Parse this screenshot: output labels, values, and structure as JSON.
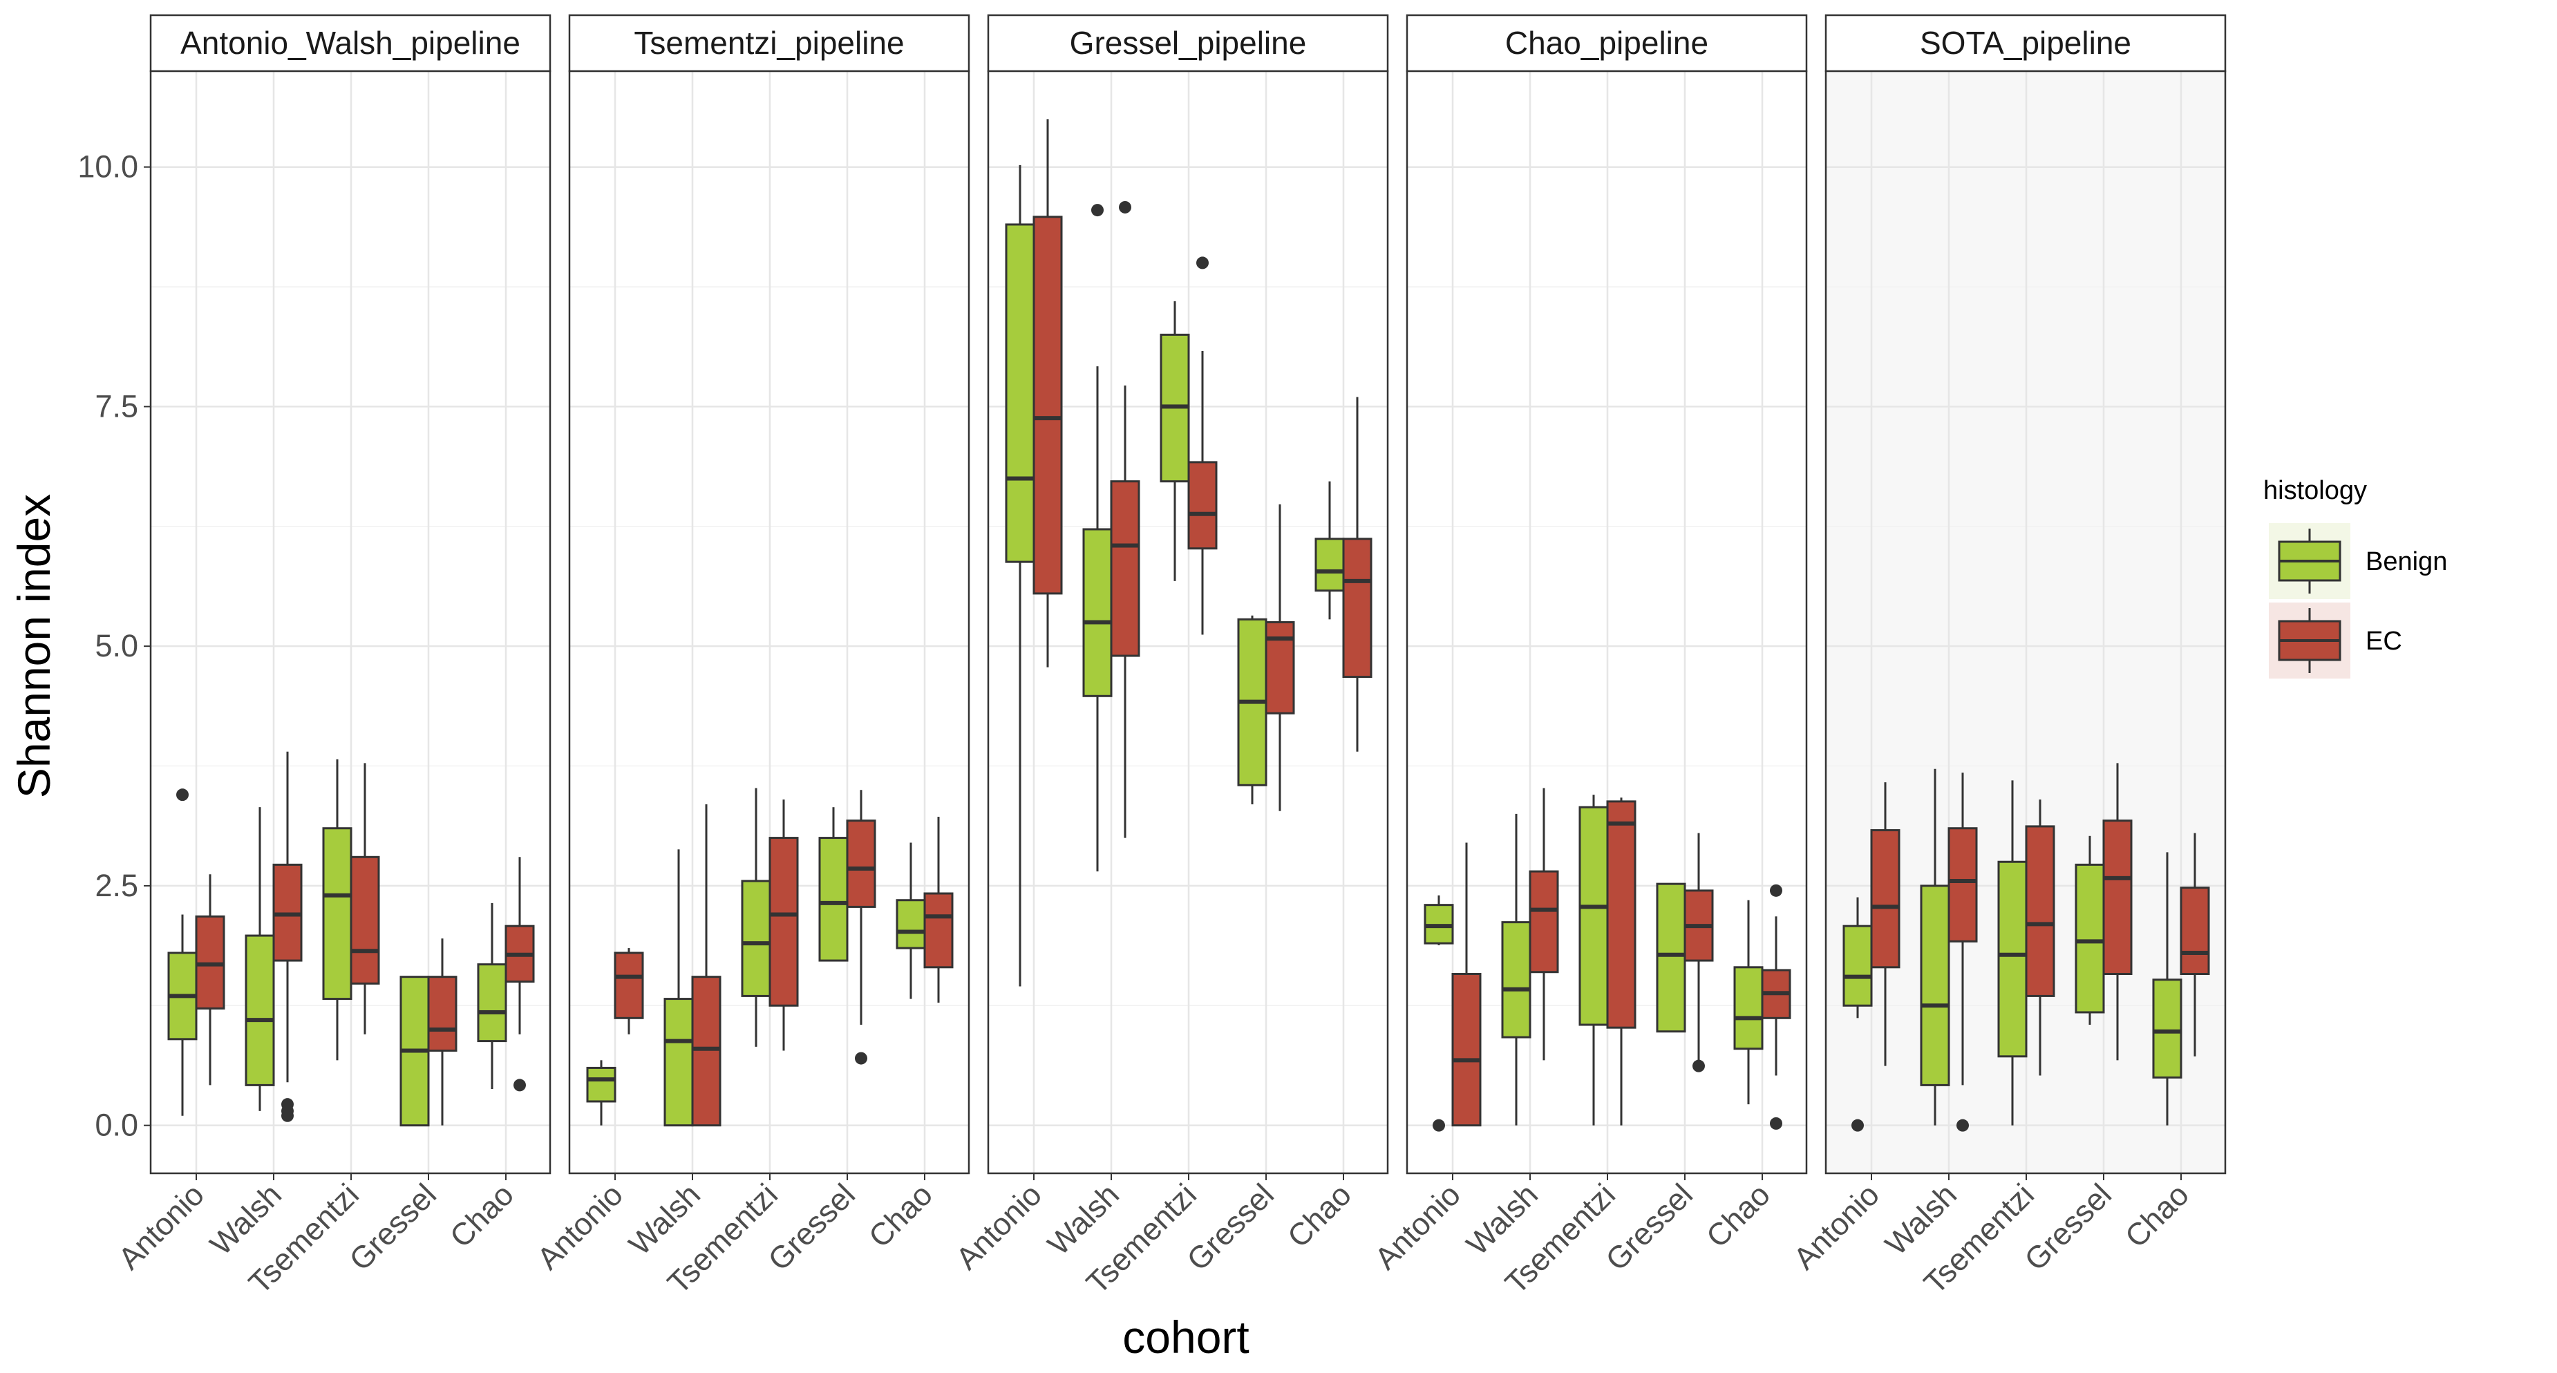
{
  "chart_data": {
    "type": "boxplot",
    "ylabel": "Shannon index",
    "xlabel": "cohort",
    "ylim": [
      -0.5,
      11.0
    ],
    "y_ticks": [
      0.0,
      2.5,
      5.0,
      7.5,
      10.0
    ],
    "y_tick_labels": [
      "0.0",
      "2.5",
      "5.0",
      "7.5",
      "10.0"
    ],
    "grid": true,
    "categories": [
      "Antonio",
      "Walsh",
      "Tsementzi",
      "Gressel",
      "Chao"
    ],
    "legend": {
      "title": "histology",
      "position": "right",
      "entries": [
        {
          "name": "Benign",
          "color": "#a6cc3d"
        },
        {
          "name": "EC",
          "color": "#b84a3a"
        }
      ]
    },
    "panels": [
      {
        "title": "Antonio_Walsh_pipeline",
        "background": "#ffffff",
        "benign": [
          {
            "whisker_low": 0.1,
            "q1": 0.9,
            "median": 1.35,
            "q3": 1.8,
            "whisker_high": 2.2,
            "outliers": [
              3.45
            ]
          },
          {
            "whisker_low": 0.15,
            "q1": 0.42,
            "median": 1.1,
            "q3": 1.98,
            "whisker_high": 3.32,
            "outliers": []
          },
          {
            "whisker_low": 0.68,
            "q1": 1.32,
            "median": 2.4,
            "q3": 3.1,
            "whisker_high": 3.82,
            "outliers": []
          },
          {
            "whisker_low": 0.0,
            "q1": 0.0,
            "median": 0.78,
            "q3": 1.55,
            "whisker_high": 1.55,
            "outliers": []
          },
          {
            "whisker_low": 0.38,
            "q1": 0.88,
            "median": 1.18,
            "q3": 1.68,
            "whisker_high": 2.32,
            "outliers": []
          }
        ],
        "ec": [
          {
            "whisker_low": 0.42,
            "q1": 1.22,
            "median": 1.68,
            "q3": 2.18,
            "whisker_high": 2.62,
            "outliers": []
          },
          {
            "whisker_low": 0.45,
            "q1": 1.72,
            "median": 2.2,
            "q3": 2.72,
            "whisker_high": 3.9,
            "outliers": [
              0.1,
              0.15,
              0.22
            ]
          },
          {
            "whisker_low": 0.95,
            "q1": 1.48,
            "median": 1.82,
            "q3": 2.8,
            "whisker_high": 3.78,
            "outliers": []
          },
          {
            "whisker_low": 0.0,
            "q1": 0.78,
            "median": 1.0,
            "q3": 1.55,
            "whisker_high": 1.95,
            "outliers": []
          },
          {
            "whisker_low": 0.95,
            "q1": 1.5,
            "median": 1.78,
            "q3": 2.08,
            "whisker_high": 2.8,
            "outliers": [
              0.42
            ]
          }
        ]
      },
      {
        "title": "Tsementzi_pipeline",
        "background": "#ffffff",
        "benign": [
          {
            "whisker_low": 0.0,
            "q1": 0.25,
            "median": 0.48,
            "q3": 0.6,
            "whisker_high": 0.68,
            "outliers": []
          },
          {
            "whisker_low": 0.0,
            "q1": 0.0,
            "median": 0.88,
            "q3": 1.32,
            "whisker_high": 2.88,
            "outliers": []
          },
          {
            "whisker_low": 0.82,
            "q1": 1.35,
            "median": 1.9,
            "q3": 2.55,
            "whisker_high": 3.52,
            "outliers": []
          },
          {
            "whisker_low": 1.72,
            "q1": 1.72,
            "median": 2.32,
            "q3": 3.0,
            "whisker_high": 3.32,
            "outliers": []
          },
          {
            "whisker_low": 1.32,
            "q1": 1.85,
            "median": 2.02,
            "q3": 2.35,
            "whisker_high": 2.95,
            "outliers": []
          }
        ],
        "ec": [
          {
            "whisker_low": 0.95,
            "q1": 1.12,
            "median": 1.55,
            "q3": 1.8,
            "whisker_high": 1.85,
            "outliers": []
          },
          {
            "whisker_low": 0.0,
            "q1": 0.0,
            "median": 0.8,
            "q3": 1.55,
            "whisker_high": 3.35,
            "outliers": []
          },
          {
            "whisker_low": 0.78,
            "q1": 1.25,
            "median": 2.2,
            "q3": 3.0,
            "whisker_high": 3.4,
            "outliers": []
          },
          {
            "whisker_low": 1.05,
            "q1": 2.28,
            "median": 2.68,
            "q3": 3.18,
            "whisker_high": 3.5,
            "outliers": [
              0.7
            ]
          },
          {
            "whisker_low": 1.28,
            "q1": 1.65,
            "median": 2.18,
            "q3": 2.42,
            "whisker_high": 3.22,
            "outliers": []
          }
        ]
      },
      {
        "title": "Gressel_pipeline",
        "background": "#ffffff",
        "benign": [
          {
            "whisker_low": 1.45,
            "q1": 5.88,
            "median": 6.75,
            "q3": 9.4,
            "whisker_high": 10.02,
            "outliers": []
          },
          {
            "whisker_low": 2.65,
            "q1": 4.48,
            "median": 5.25,
            "q3": 6.22,
            "whisker_high": 7.92,
            "outliers": [
              9.55
            ]
          },
          {
            "whisker_low": 5.68,
            "q1": 6.72,
            "median": 7.5,
            "q3": 8.25,
            "whisker_high": 8.6,
            "outliers": []
          },
          {
            "whisker_low": 3.35,
            "q1": 3.55,
            "median": 4.42,
            "q3": 5.28,
            "whisker_high": 5.32,
            "outliers": []
          },
          {
            "whisker_low": 5.28,
            "q1": 5.58,
            "median": 5.78,
            "q3": 6.12,
            "whisker_high": 6.72,
            "outliers": []
          }
        ],
        "ec": [
          {
            "whisker_low": 4.78,
            "q1": 5.55,
            "median": 7.38,
            "q3": 9.48,
            "whisker_high": 10.5,
            "outliers": []
          },
          {
            "whisker_low": 3.0,
            "q1": 4.9,
            "median": 6.05,
            "q3": 6.72,
            "whisker_high": 7.72,
            "outliers": [
              9.58
            ]
          },
          {
            "whisker_low": 5.12,
            "q1": 6.02,
            "median": 6.38,
            "q3": 6.92,
            "whisker_high": 8.08,
            "outliers": [
              9.0
            ]
          },
          {
            "whisker_low": 3.28,
            "q1": 4.3,
            "median": 5.08,
            "q3": 5.25,
            "whisker_high": 6.48,
            "outliers": []
          },
          {
            "whisker_low": 3.9,
            "q1": 4.68,
            "median": 5.68,
            "q3": 6.12,
            "whisker_high": 7.6,
            "outliers": []
          }
        ]
      },
      {
        "title": "Chao_pipeline",
        "background": "#ffffff",
        "benign": [
          {
            "whisker_low": 1.88,
            "q1": 1.9,
            "median": 2.08,
            "q3": 2.3,
            "whisker_high": 2.4,
            "outliers": [
              0.0
            ]
          },
          {
            "whisker_low": 0.0,
            "q1": 0.92,
            "median": 1.42,
            "q3": 2.12,
            "whisker_high": 3.25,
            "outliers": []
          },
          {
            "whisker_low": 0.0,
            "q1": 1.05,
            "median": 2.28,
            "q3": 3.32,
            "whisker_high": 3.45,
            "outliers": []
          },
          {
            "whisker_low": 0.98,
            "q1": 0.98,
            "median": 1.78,
            "q3": 2.52,
            "whisker_high": 2.52,
            "outliers": []
          },
          {
            "whisker_low": 0.22,
            "q1": 0.8,
            "median": 1.12,
            "q3": 1.65,
            "whisker_high": 2.35,
            "outliers": []
          }
        ],
        "ec": [
          {
            "whisker_low": 0.0,
            "q1": 0.0,
            "median": 0.68,
            "q3": 1.58,
            "whisker_high": 2.95,
            "outliers": []
          },
          {
            "whisker_low": 0.68,
            "q1": 1.6,
            "median": 2.25,
            "q3": 2.65,
            "whisker_high": 3.52,
            "outliers": []
          },
          {
            "whisker_low": 0.0,
            "q1": 1.02,
            "median": 3.15,
            "q3": 3.38,
            "whisker_high": 3.42,
            "outliers": []
          },
          {
            "whisker_low": 0.65,
            "q1": 1.72,
            "median": 2.08,
            "q3": 2.45,
            "whisker_high": 3.05,
            "outliers": [
              0.62
            ]
          },
          {
            "whisker_low": 0.52,
            "q1": 1.12,
            "median": 1.38,
            "q3": 1.62,
            "whisker_high": 2.18,
            "outliers": [
              0.02,
              2.45
            ]
          }
        ]
      },
      {
        "title": "SOTA_pipeline",
        "background": "#f7f7f7",
        "benign": [
          {
            "whisker_low": 1.12,
            "q1": 1.25,
            "median": 1.55,
            "q3": 2.08,
            "whisker_high": 2.38,
            "outliers": [
              0.0
            ]
          },
          {
            "whisker_low": 0.0,
            "q1": 0.42,
            "median": 1.25,
            "q3": 2.5,
            "whisker_high": 3.72,
            "outliers": []
          },
          {
            "whisker_low": 0.0,
            "q1": 0.72,
            "median": 1.78,
            "q3": 2.75,
            "whisker_high": 3.6,
            "outliers": []
          },
          {
            "whisker_low": 1.05,
            "q1": 1.18,
            "median": 1.92,
            "q3": 2.72,
            "whisker_high": 3.02,
            "outliers": []
          },
          {
            "whisker_low": 0.0,
            "q1": 0.5,
            "median": 0.98,
            "q3": 1.52,
            "whisker_high": 2.85,
            "outliers": []
          }
        ],
        "ec": [
          {
            "whisker_low": 0.62,
            "q1": 1.65,
            "median": 2.28,
            "q3": 3.08,
            "whisker_high": 3.58,
            "outliers": []
          },
          {
            "whisker_low": 0.42,
            "q1": 1.92,
            "median": 2.55,
            "q3": 3.1,
            "whisker_high": 3.68,
            "outliers": [
              0.0
            ]
          },
          {
            "whisker_low": 0.52,
            "q1": 1.35,
            "median": 2.1,
            "q3": 3.12,
            "whisker_high": 3.4,
            "outliers": []
          },
          {
            "whisker_low": 0.68,
            "q1": 1.58,
            "median": 2.58,
            "q3": 3.18,
            "whisker_high": 3.78,
            "outliers": []
          },
          {
            "whisker_low": 0.72,
            "q1": 1.58,
            "median": 1.8,
            "q3": 2.48,
            "whisker_high": 3.05,
            "outliers": []
          }
        ]
      }
    ]
  }
}
